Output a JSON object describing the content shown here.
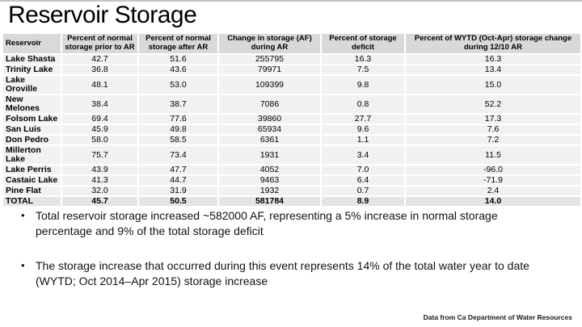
{
  "slide": {
    "title": "Reservoir Storage",
    "source_note": "Data from Ca Department of Water Resources"
  },
  "table": {
    "columns": [
      "Reservoir",
      "Percent of normal storage prior to AR",
      "Percent of normal storage after AR",
      "Change in storage (AF) during AR",
      "Percent of storage deficit",
      "Percent of WYTD (Oct-Apr) storage change during 12/10 AR"
    ],
    "rows": [
      [
        "Lake Shasta",
        "42.7",
        "51.6",
        "255795",
        "16.3",
        "16.3"
      ],
      [
        "Trinity Lake",
        "36.8",
        "43.6",
        "79971",
        "7.5",
        "13.4"
      ],
      [
        "Lake Oroville",
        "48.1",
        "53.0",
        "109399",
        "9.8",
        "15.0"
      ],
      [
        "New Melones",
        "38.4",
        "38.7",
        "7086",
        "0.8",
        "52.2"
      ],
      [
        "Folsom Lake",
        "69.4",
        "77.6",
        "39860",
        "27.7",
        "17.3"
      ],
      [
        "San Luis",
        "45.9",
        "49.8",
        "65934",
        "9.6",
        "7.6"
      ],
      [
        "Don Pedro",
        "58.0",
        "58.5",
        "6361",
        "1.1",
        "7.2"
      ],
      [
        "Millerton Lake",
        "75.7",
        "73.4",
        "1931",
        "3.4",
        "11.5"
      ],
      [
        "Lake Perris",
        "43.9",
        "47.7",
        "4052",
        "7.0",
        "-96.0"
      ],
      [
        "Castaic Lake",
        "41.3",
        "44.7",
        "9463",
        "6.4",
        "-71.9"
      ],
      [
        "Pine Flat",
        "32.0",
        "31.9",
        "1932",
        "0.7",
        "2.4"
      ]
    ],
    "total": [
      "TOTAL",
      "45.7",
      "50.5",
      "581784",
      "8.9",
      "14.0"
    ]
  },
  "bullets": [
    "Total reservoir storage increased ~582000 AF, representing a 5% increase in normal storage percentage and 9% of the total storage deficit",
    "The storage increase that occurred during this event represents 14% of the total water year to date (WYTD; Oct 2014–Apr 2015) storage increase"
  ],
  "colors": {
    "header_bg": "#d9d9d9",
    "row_bg": "#f1f1f1",
    "total_row_bg": "#e4e4e4",
    "grid": "#ffffff"
  }
}
